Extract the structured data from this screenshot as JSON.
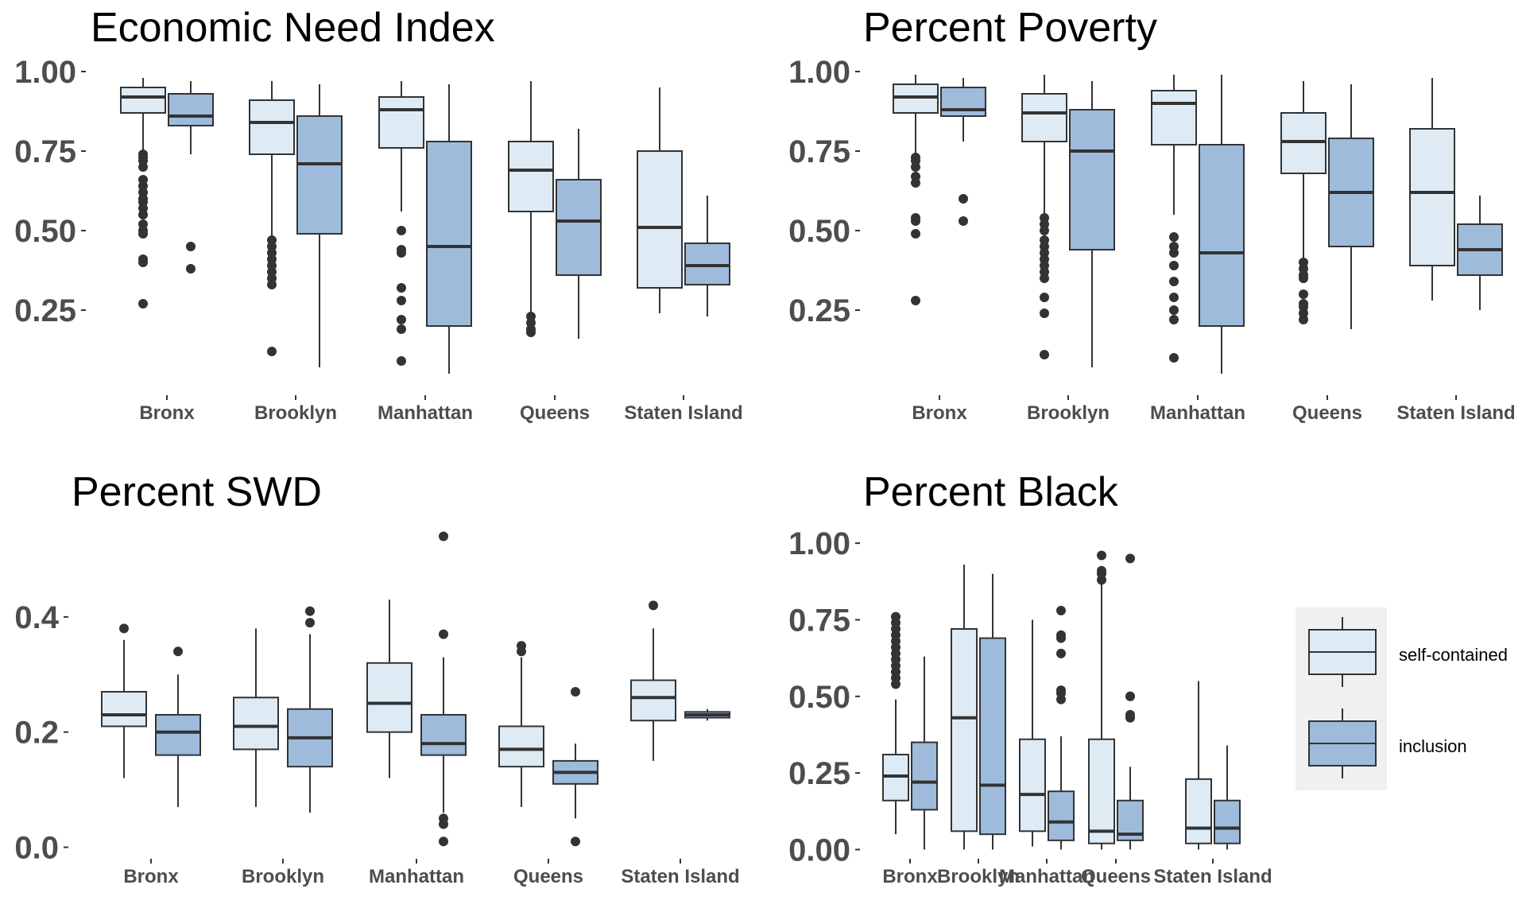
{
  "colors": {
    "self-contained": "#deebf5",
    "inclusion": "#9ebbdc",
    "stroke": "#333333",
    "legend_bg": "#f0f0f0"
  },
  "legend": {
    "entries": [
      "self-contained",
      "inclusion"
    ]
  },
  "chart_data": [
    {
      "type": "boxplot",
      "title": "Economic Need Index",
      "categories": [
        "Bronx",
        "Brooklyn",
        "Manhattan",
        "Queens",
        "Staten Island"
      ],
      "series_names": [
        "self-contained",
        "inclusion"
      ],
      "yticks": [
        0.25,
        0.5,
        0.75,
        1.0
      ],
      "ytick_labels": [
        "0.25",
        "0.50",
        "0.75",
        "1.00"
      ],
      "ylim": [
        0.0,
        1.05
      ],
      "boxes": [
        [
          {
            "whisker_low": 0.74,
            "q1": 0.87,
            "median": 0.92,
            "q3": 0.95,
            "whisker_high": 0.98,
            "outliers": [
              0.74,
              0.73,
              0.72,
              0.7,
              0.66,
              0.64,
              0.62,
              0.6,
              0.59,
              0.57,
              0.55,
              0.52,
              0.5,
              0.49,
              0.41,
              0.4,
              0.27
            ]
          },
          {
            "whisker_low": 0.74,
            "q1": 0.83,
            "median": 0.86,
            "q3": 0.93,
            "whisker_high": 0.97,
            "outliers": [
              0.45,
              0.38
            ]
          }
        ],
        [
          {
            "whisker_low": 0.48,
            "q1": 0.74,
            "median": 0.84,
            "q3": 0.91,
            "whisker_high": 0.97,
            "outliers": [
              0.47,
              0.45,
              0.43,
              0.41,
              0.39,
              0.37,
              0.35,
              0.33,
              0.12
            ]
          },
          {
            "whisker_low": 0.07,
            "q1": 0.49,
            "median": 0.71,
            "q3": 0.86,
            "whisker_high": 0.96,
            "outliers": []
          }
        ],
        [
          {
            "whisker_low": 0.56,
            "q1": 0.76,
            "median": 0.88,
            "q3": 0.92,
            "whisker_high": 0.97,
            "outliers": [
              0.5,
              0.44,
              0.43,
              0.32,
              0.28,
              0.22,
              0.19,
              0.09
            ]
          },
          {
            "whisker_low": 0.05,
            "q1": 0.2,
            "median": 0.45,
            "q3": 0.78,
            "whisker_high": 0.96,
            "outliers": []
          }
        ],
        [
          {
            "whisker_low": 0.24,
            "q1": 0.56,
            "median": 0.69,
            "q3": 0.78,
            "whisker_high": 0.97,
            "outliers": [
              0.23,
              0.21,
              0.19,
              0.18
            ]
          },
          {
            "whisker_low": 0.16,
            "q1": 0.36,
            "median": 0.53,
            "q3": 0.66,
            "whisker_high": 0.82,
            "outliers": []
          }
        ],
        [
          {
            "whisker_low": 0.24,
            "q1": 0.32,
            "median": 0.51,
            "q3": 0.75,
            "whisker_high": 0.95,
            "outliers": []
          },
          {
            "whisker_low": 0.23,
            "q1": 0.33,
            "median": 0.39,
            "q3": 0.46,
            "whisker_high": 0.61,
            "outliers": []
          }
        ]
      ]
    },
    {
      "type": "boxplot",
      "title": "Percent Poverty",
      "categories": [
        "Bronx",
        "Brooklyn",
        "Manhattan",
        "Queens",
        "Staten Island"
      ],
      "series_names": [
        "self-contained",
        "inclusion"
      ],
      "yticks": [
        0.25,
        0.5,
        0.75,
        1.0
      ],
      "ytick_labels": [
        "0.25",
        "0.50",
        "0.75",
        "1.00"
      ],
      "ylim": [
        0.0,
        1.05
      ],
      "boxes": [
        [
          {
            "whisker_low": 0.74,
            "q1": 0.87,
            "median": 0.92,
            "q3": 0.96,
            "whisker_high": 0.99,
            "outliers": [
              0.73,
              0.72,
              0.7,
              0.67,
              0.65,
              0.54,
              0.53,
              0.49,
              0.28
            ]
          },
          {
            "whisker_low": 0.78,
            "q1": 0.86,
            "median": 0.88,
            "q3": 0.95,
            "whisker_high": 0.98,
            "outliers": [
              0.6,
              0.53
            ]
          }
        ],
        [
          {
            "whisker_low": 0.53,
            "q1": 0.78,
            "median": 0.87,
            "q3": 0.93,
            "whisker_high": 0.99,
            "outliers": [
              0.54,
              0.52,
              0.5,
              0.47,
              0.45,
              0.43,
              0.41,
              0.39,
              0.37,
              0.35,
              0.29,
              0.24,
              0.11
            ]
          },
          {
            "whisker_low": 0.07,
            "q1": 0.44,
            "median": 0.75,
            "q3": 0.88,
            "whisker_high": 0.97,
            "outliers": []
          }
        ],
        [
          {
            "whisker_low": 0.55,
            "q1": 0.77,
            "median": 0.9,
            "q3": 0.94,
            "whisker_high": 0.99,
            "outliers": [
              0.48,
              0.45,
              0.43,
              0.39,
              0.34,
              0.29,
              0.25,
              0.22,
              0.1
            ]
          },
          {
            "whisker_low": 0.05,
            "q1": 0.2,
            "median": 0.43,
            "q3": 0.77,
            "whisker_high": 0.99,
            "outliers": []
          }
        ],
        [
          {
            "whisker_low": 0.41,
            "q1": 0.68,
            "median": 0.78,
            "q3": 0.87,
            "whisker_high": 0.97,
            "outliers": [
              0.4,
              0.38,
              0.36,
              0.35,
              0.3,
              0.27,
              0.26,
              0.24,
              0.22
            ]
          },
          {
            "whisker_low": 0.19,
            "q1": 0.45,
            "median": 0.62,
            "q3": 0.79,
            "whisker_high": 0.96,
            "outliers": []
          }
        ],
        [
          {
            "whisker_low": 0.28,
            "q1": 0.39,
            "median": 0.62,
            "q3": 0.82,
            "whisker_high": 0.98,
            "outliers": []
          },
          {
            "whisker_low": 0.25,
            "q1": 0.36,
            "median": 0.44,
            "q3": 0.52,
            "whisker_high": 0.61,
            "outliers": []
          }
        ]
      ]
    },
    {
      "type": "boxplot",
      "title": "Percent SWD",
      "categories": [
        "Bronx",
        "Brooklyn",
        "Manhattan",
        "Queens",
        "Staten Island"
      ],
      "series_names": [
        "self-contained",
        "inclusion"
      ],
      "yticks": [
        0.0,
        0.2,
        0.4
      ],
      "ytick_labels": [
        "0.0",
        "0.2",
        "0.4"
      ],
      "ylim": [
        -0.02,
        0.56
      ],
      "boxes": [
        [
          {
            "whisker_low": 0.12,
            "q1": 0.21,
            "median": 0.23,
            "q3": 0.27,
            "whisker_high": 0.36,
            "outliers": [
              0.38
            ]
          },
          {
            "whisker_low": 0.07,
            "q1": 0.16,
            "median": 0.2,
            "q3": 0.23,
            "whisker_high": 0.3,
            "outliers": [
              0.34
            ]
          }
        ],
        [
          {
            "whisker_low": 0.07,
            "q1": 0.17,
            "median": 0.21,
            "q3": 0.26,
            "whisker_high": 0.38,
            "outliers": []
          },
          {
            "whisker_low": 0.06,
            "q1": 0.14,
            "median": 0.19,
            "q3": 0.24,
            "whisker_high": 0.37,
            "outliers": [
              0.41,
              0.39
            ]
          }
        ],
        [
          {
            "whisker_low": 0.12,
            "q1": 0.2,
            "median": 0.25,
            "q3": 0.32,
            "whisker_high": 0.43,
            "outliers": []
          },
          {
            "whisker_low": 0.06,
            "q1": 0.16,
            "median": 0.18,
            "q3": 0.23,
            "whisker_high": 0.33,
            "outliers": [
              0.54,
              0.37,
              0.05,
              0.04,
              0.01
            ]
          }
        ],
        [
          {
            "whisker_low": 0.07,
            "q1": 0.14,
            "median": 0.17,
            "q3": 0.21,
            "whisker_high": 0.33,
            "outliers": [
              0.35,
              0.34
            ]
          },
          {
            "whisker_low": 0.05,
            "q1": 0.11,
            "median": 0.13,
            "q3": 0.15,
            "whisker_high": 0.18,
            "outliers": [
              0.27,
              0.01
            ]
          }
        ],
        [
          {
            "whisker_low": 0.15,
            "q1": 0.22,
            "median": 0.26,
            "q3": 0.29,
            "whisker_high": 0.38,
            "outliers": [
              0.42
            ]
          },
          {
            "whisker_low": 0.22,
            "q1": 0.225,
            "median": 0.23,
            "q3": 0.235,
            "whisker_high": 0.24,
            "outliers": []
          }
        ]
      ]
    },
    {
      "type": "boxplot",
      "title": "Percent Black",
      "categories": [
        "Bronx",
        "Brooklyn",
        "Manhattan",
        "Queens",
        "Staten Island"
      ],
      "series_names": [
        "self-contained",
        "inclusion"
      ],
      "yticks": [
        0.0,
        0.25,
        0.5,
        0.75,
        1.0
      ],
      "ytick_labels": [
        "0.00",
        "0.25",
        "0.50",
        "0.75",
        "1.00"
      ],
      "ylim": [
        -0.03,
        1.06
      ],
      "boxes": [
        [
          {
            "whisker_low": 0.05,
            "q1": 0.16,
            "median": 0.24,
            "q3": 0.31,
            "whisker_high": 0.49,
            "outliers": [
              0.76,
              0.74,
              0.72,
              0.7,
              0.68,
              0.66,
              0.64,
              0.62,
              0.6,
              0.58,
              0.56,
              0.54
            ]
          },
          {
            "whisker_low": 0.0,
            "q1": 0.13,
            "median": 0.22,
            "q3": 0.35,
            "whisker_high": 0.63,
            "outliers": []
          }
        ],
        [
          {
            "whisker_low": 0.0,
            "q1": 0.06,
            "median": 0.43,
            "q3": 0.72,
            "whisker_high": 0.93,
            "outliers": []
          },
          {
            "whisker_low": 0.0,
            "q1": 0.05,
            "median": 0.21,
            "q3": 0.69,
            "whisker_high": 0.9,
            "outliers": []
          }
        ],
        [
          {
            "whisker_low": 0.01,
            "q1": 0.06,
            "median": 0.18,
            "q3": 0.36,
            "whisker_high": 0.75,
            "outliers": []
          },
          {
            "whisker_low": 0.0,
            "q1": 0.03,
            "median": 0.09,
            "q3": 0.19,
            "whisker_high": 0.37,
            "outliers": [
              0.78,
              0.7,
              0.69,
              0.64,
              0.52,
              0.51,
              0.49
            ]
          }
        ],
        [
          {
            "whisker_low": 0.0,
            "q1": 0.02,
            "median": 0.06,
            "q3": 0.36,
            "whisker_high": 0.87,
            "outliers": [
              0.96,
              0.91,
              0.9,
              0.88
            ]
          },
          {
            "whisker_low": 0.0,
            "q1": 0.03,
            "median": 0.05,
            "q3": 0.16,
            "whisker_high": 0.27,
            "outliers": [
              0.95,
              0.5,
              0.5,
              0.44,
              0.43
            ]
          }
        ],
        [
          {
            "whisker_low": 0.0,
            "q1": 0.02,
            "median": 0.07,
            "q3": 0.23,
            "whisker_high": 0.55,
            "outliers": []
          },
          {
            "whisker_low": 0.0,
            "q1": 0.02,
            "median": 0.07,
            "q3": 0.16,
            "whisker_high": 0.34,
            "outliers": []
          }
        ]
      ]
    }
  ]
}
